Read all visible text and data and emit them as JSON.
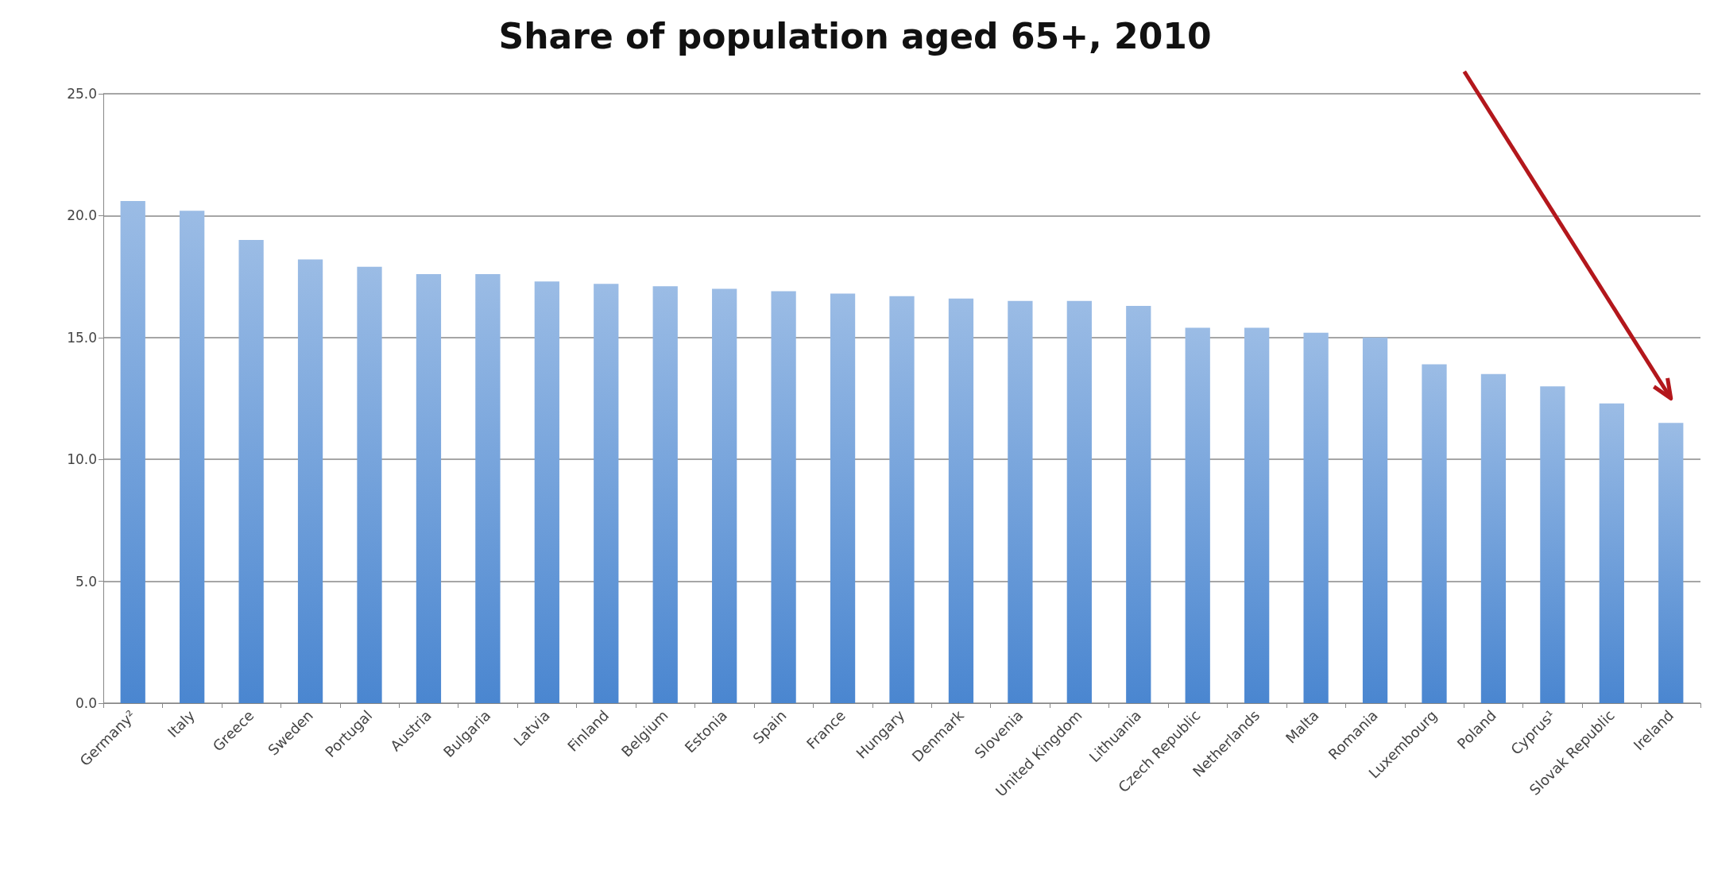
{
  "chart_data": {
    "type": "bar",
    "title": "Share of population aged 65+, 2010",
    "categories": [
      "Germany²",
      "Italy",
      "Greece",
      "Sweden",
      "Portugal",
      "Austria",
      "Bulgaria",
      "Latvia",
      "Finland",
      "Belgium",
      "Estonia",
      "Spain",
      "France",
      "Hungary",
      "Denmark",
      "Slovenia",
      "United Kingdom",
      "Lithuania",
      "Czech Republic",
      "Netherlands",
      "Malta",
      "Romania",
      "Luxembourg",
      "Poland",
      "Cyprus¹",
      "Slovak Republic",
      "Ireland"
    ],
    "values": [
      20.6,
      20.2,
      19.0,
      18.2,
      17.9,
      17.6,
      17.6,
      17.3,
      17.2,
      17.1,
      17.0,
      16.9,
      16.8,
      16.7,
      16.6,
      16.5,
      16.5,
      16.3,
      15.4,
      15.4,
      15.2,
      15.0,
      13.9,
      13.5,
      13.0,
      12.3,
      11.5
    ],
    "color": "#4a86d0",
    "ylim": [
      0,
      25
    ],
    "yticks": [
      {
        "value": 0,
        "label": "0.0"
      },
      {
        "value": 5,
        "label": "5.0"
      },
      {
        "value": 10,
        "label": "10.0"
      },
      {
        "value": 15,
        "label": "15.0"
      },
      {
        "value": 20,
        "label": "20.0"
      },
      {
        "value": 25,
        "label": "25.0"
      }
    ],
    "grid": "y"
  }
}
